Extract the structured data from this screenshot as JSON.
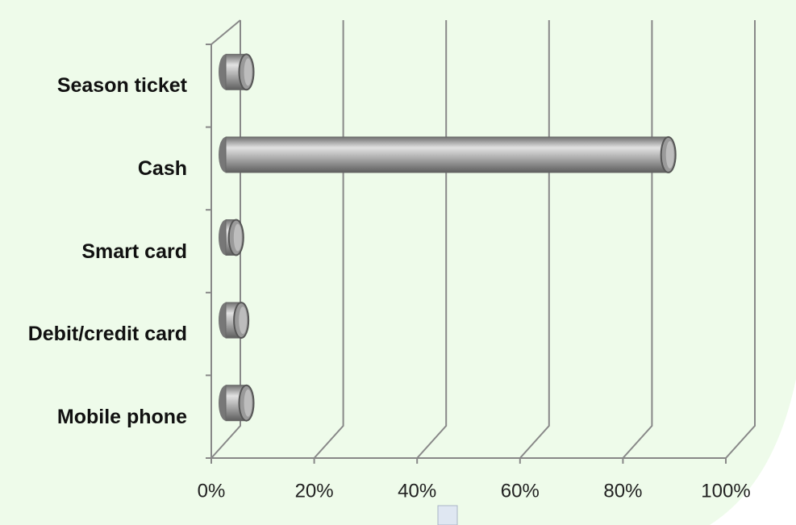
{
  "chart_data": {
    "type": "bar",
    "categories": [
      "Season ticket",
      "Cash",
      "Smart card",
      "Debit/credit card",
      "Mobile phone"
    ],
    "values": [
      4,
      86,
      2,
      3,
      4
    ],
    "color": "#9a9a9a",
    "xlim": [
      0,
      100
    ],
    "xticks": [
      {
        "value": 0,
        "label": "0%"
      },
      {
        "value": 20,
        "label": "20%"
      },
      {
        "value": 40,
        "label": "40%"
      },
      {
        "value": 60,
        "label": "60%"
      },
      {
        "value": 80,
        "label": "80%"
      },
      {
        "value": 100,
        "label": "100%"
      }
    ],
    "grid": true
  }
}
